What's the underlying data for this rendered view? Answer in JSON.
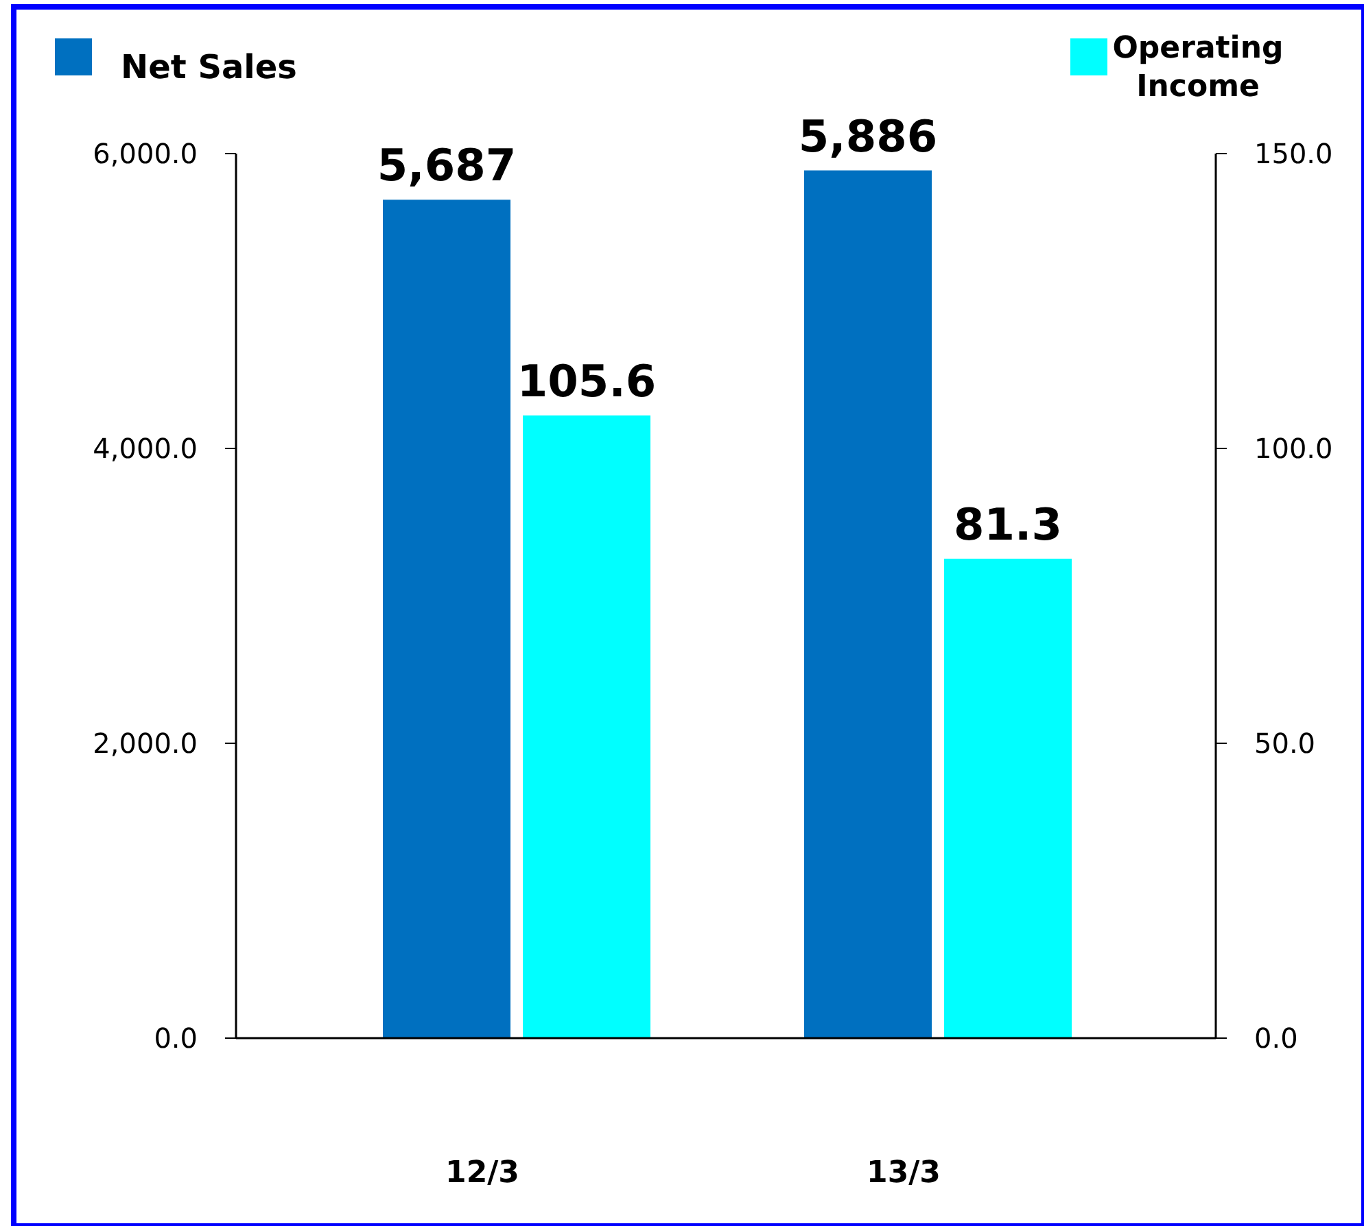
{
  "chart_data": {
    "type": "bar",
    "categories": [
      "12/3",
      "13/3"
    ],
    "series": [
      {
        "name": "Net Sales",
        "color": "#0070c0",
        "values": [
          5687,
          5886
        ],
        "value_labels": [
          "5,687",
          "5,886"
        ]
      },
      {
        "name": "Operating Income",
        "color": "#00ffff",
        "values": [
          105.6,
          81.3
        ],
        "value_labels": [
          "105.6",
          "81.3"
        ],
        "axis": "y2"
      }
    ],
    "ylim": [
      0,
      6000
    ],
    "yticks": [
      {
        "value": 0,
        "label": "0.0"
      },
      {
        "value": 2000,
        "label": "2,000.0"
      },
      {
        "value": 4000,
        "label": "4,000.0"
      },
      {
        "value": 6000,
        "label": "6,000.0"
      }
    ],
    "y2lim": [
      0,
      150
    ],
    "y2ticks": [
      {
        "value": 0,
        "label": "0.0"
      },
      {
        "value": 50,
        "label": "50.0"
      },
      {
        "value": 100,
        "label": "100.0"
      },
      {
        "value": 150,
        "label": "150.0"
      }
    ],
    "legend": "top",
    "grid": false
  }
}
